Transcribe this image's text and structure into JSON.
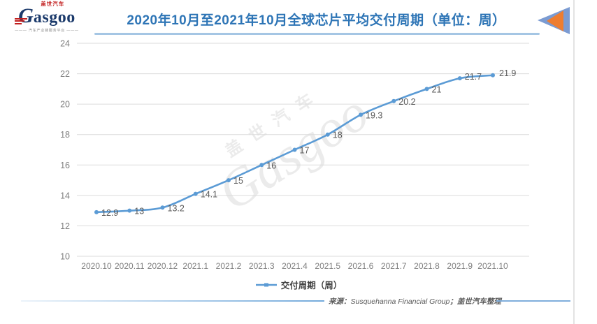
{
  "header": {
    "logo": {
      "brand": "Gasgoo",
      "brand_cn": "盖世汽车",
      "tagline": "汽车产业链服务平台"
    },
    "decoration_icon": "double-left-triangles"
  },
  "chart_data": {
    "type": "line",
    "title": "2020年10月至2021年10月全球芯片平均交付周期（单位：周）",
    "categories": [
      "2020.10",
      "2020.11",
      "2020.12",
      "2021.1",
      "2021.2",
      "2021.3",
      "2021.4",
      "2021.5",
      "2021.6",
      "2021.7",
      "2021.8",
      "2021.9",
      "2021.10"
    ],
    "series": [
      {
        "name": "交付周期（周）",
        "values": [
          12.9,
          13,
          13.2,
          14.1,
          15,
          16,
          17,
          18,
          19.3,
          20.2,
          21,
          21.7,
          21.9
        ],
        "labels": [
          "12.9",
          "13",
          "13.2",
          "14.1",
          "15",
          "16",
          "17",
          "18",
          "19.3",
          "20.2",
          "21",
          "21.7",
          "21.9"
        ],
        "color": "#5B9BD5"
      }
    ],
    "xlabel": "",
    "ylabel": "",
    "ylim": [
      10,
      24
    ],
    "yticks": [
      10,
      12,
      14,
      16,
      18,
      20,
      22,
      24
    ],
    "grid": true,
    "legend_position": "bottom"
  },
  "watermark": {
    "line1": "盖世汽车",
    "line2": "Gasgoo"
  },
  "footer": {
    "source_label": "来源：",
    "source_text": "Susquehanna Financial Group",
    "source_suffix": "；盖世汽车整理"
  },
  "colors": {
    "line": "#5B9BD5",
    "title": "#2E75B6",
    "grid": "#DBDBDB",
    "tick_label": "#7F7F7F",
    "data_label": "#595959",
    "accent_orange": "#ED7D31",
    "accent_blue": "#7B9BD2",
    "logo_navy": "#1B3A6B",
    "logo_red": "#C21F1F"
  }
}
